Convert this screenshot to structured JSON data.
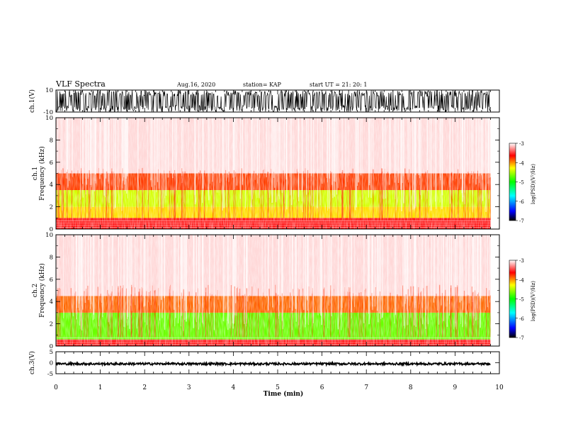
{
  "header": {
    "title": "VLF Spectra",
    "date": "Aug.16, 2020",
    "station": "station= KAP",
    "start": "start  UT  =   21: 20: 1"
  },
  "chart_data": [
    {
      "type": "line",
      "panel": "ch1-waveform",
      "ylabel": "ch.1(V)",
      "ylim": [
        -10,
        10
      ],
      "y_ticks": [
        "10",
        "-10"
      ],
      "xlim": [
        0,
        10
      ],
      "data_extent_x": [
        0,
        9.8
      ],
      "description_values": "dense noise waveform saturating between about -10 and 10 V"
    },
    {
      "type": "heatmap",
      "panel": "ch1-spectrogram",
      "ylabel": "ch.1\nFrequency  (kHz)",
      "ylim": [
        0,
        10
      ],
      "y_ticks": [
        "0",
        "2",
        "4",
        "6",
        "8",
        "10"
      ],
      "xlim": [
        0,
        10
      ],
      "data_extent_x": [
        0,
        9.8
      ],
      "bands": [
        {
          "f_low": 0.0,
          "f_high": 1.0,
          "level": -3.6
        },
        {
          "f_low": 1.0,
          "f_high": 2.0,
          "level": -4.2
        },
        {
          "f_low": 2.0,
          "f_high": 3.5,
          "level": -4.4
        },
        {
          "f_low": 3.5,
          "f_high": 5.0,
          "level": -3.8
        },
        {
          "f_low": 5.0,
          "f_high": 10.0,
          "level": -3.1
        }
      ],
      "colorbar": {
        "label": "log(PSD)(V²/Hz)",
        "range": [
          -7,
          -3
        ],
        "ticks": [
          "-3",
          "-4",
          "-5",
          "-6",
          "-7"
        ]
      }
    },
    {
      "type": "heatmap",
      "panel": "ch2-spectrogram",
      "ylabel": "ch.2\nFrequency  (kHz)",
      "ylim": [
        0,
        10
      ],
      "y_ticks": [
        "0",
        "2",
        "4",
        "6",
        "8",
        "10"
      ],
      "xlim": [
        0,
        10
      ],
      "data_extent_x": [
        0,
        9.8
      ],
      "bands": [
        {
          "f_low": 0.0,
          "f_high": 0.6,
          "level": -3.6
        },
        {
          "f_low": 0.6,
          "f_high": 3.0,
          "level": -4.7
        },
        {
          "f_low": 3.0,
          "f_high": 4.5,
          "level": -3.9
        },
        {
          "f_low": 4.5,
          "f_high": 10.0,
          "level": -3.1
        }
      ],
      "colorbar": {
        "label": "log(PSD)(V²/Hz)",
        "range": [
          -7,
          -3
        ],
        "ticks": [
          "-3",
          "-4",
          "-5",
          "-6",
          "-7"
        ]
      }
    },
    {
      "type": "line",
      "panel": "ch3-waveform",
      "ylabel": "ch.3(V)",
      "ylim": [
        -5,
        5
      ],
      "y_ticks": [
        "5",
        "0",
        "-5"
      ],
      "xlim": [
        0,
        10
      ],
      "data_extent_x": [
        0,
        9.8
      ],
      "description_values": "narrow band of noise around -0.5 V, amplitude about ±0.5 V"
    }
  ],
  "time_axis": {
    "label": "Time  (min)",
    "ticks": [
      "0",
      "1",
      "2",
      "3",
      "4",
      "5",
      "6",
      "7",
      "8",
      "9",
      "10"
    ]
  }
}
